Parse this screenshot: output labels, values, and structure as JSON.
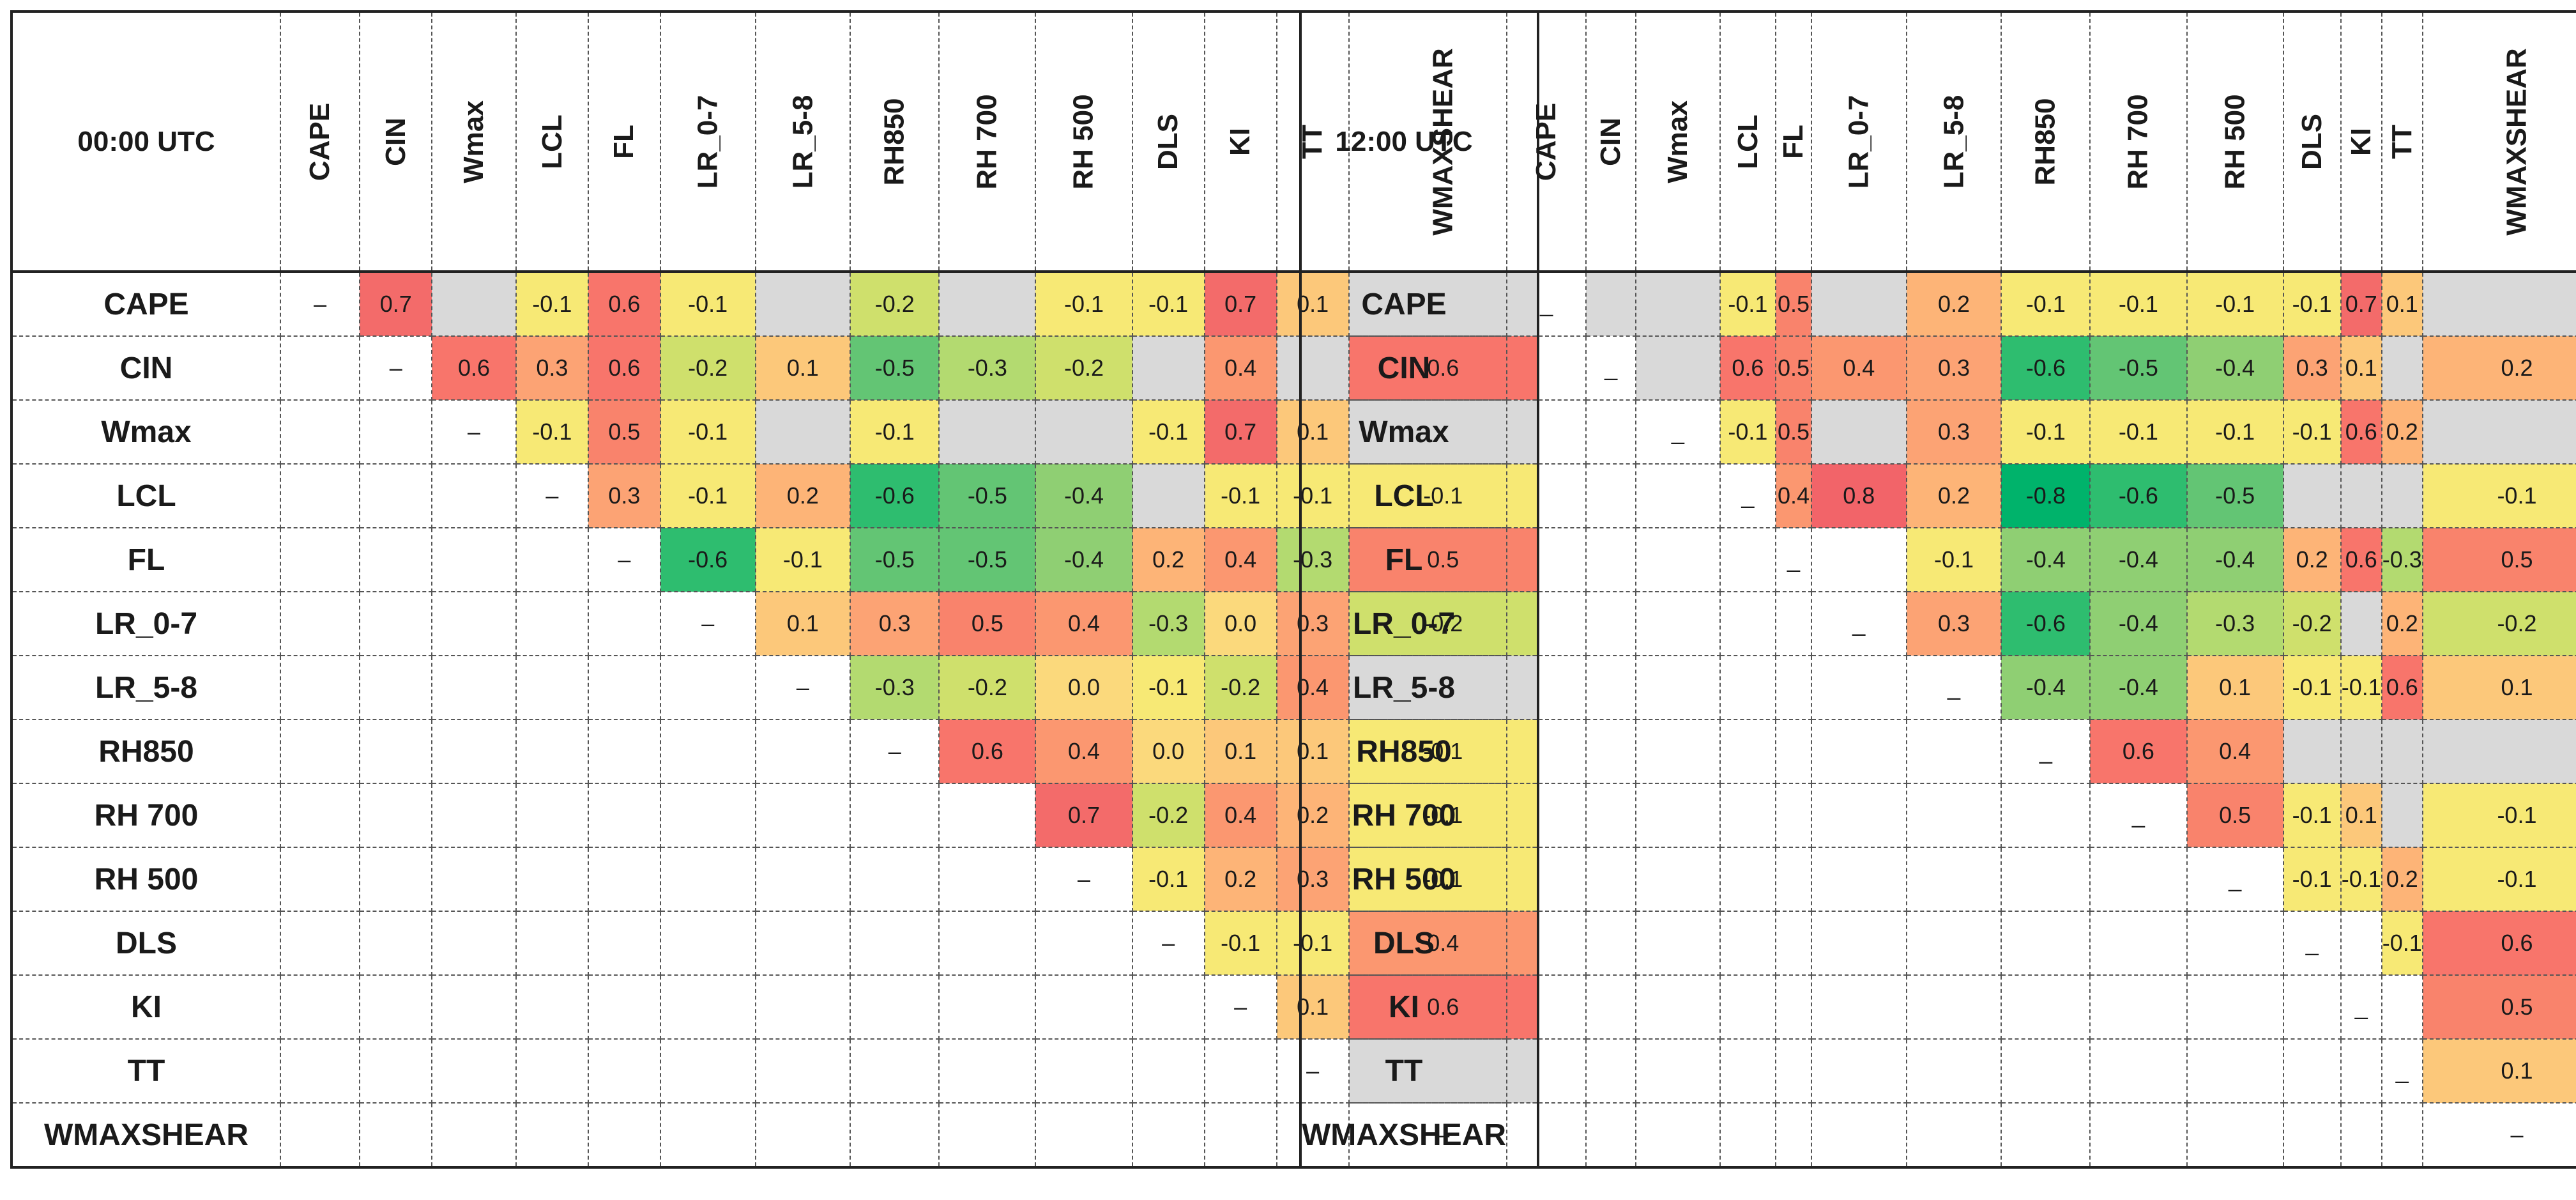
{
  "chart_data": [
    {
      "type": "table",
      "title": "00:00 UTC",
      "columns": [
        "CAPE",
        "CIN",
        "Wmax",
        "LCL",
        "FL",
        "LR_0-7",
        "LR_5-8",
        "RH850",
        "RH 700",
        "RH 500",
        "DLS",
        "KI",
        "TT",
        "WMAXSHEAR"
      ],
      "rows": [
        "CAPE",
        "CIN",
        "Wmax",
        "LCL",
        "FL",
        "LR_0-7",
        "LR_5-8",
        "RH850",
        "RH 700",
        "RH 500",
        "DLS",
        "KI",
        "TT",
        "WMAXSHEAR"
      ],
      "values": [
        [
          "–",
          "0.7",
          "G",
          "-0.1",
          "0.6",
          "-0.1",
          "G",
          "-0.2",
          "G",
          "-0.1",
          "-0.1",
          "0.7",
          "0.1",
          "G"
        ],
        [
          "",
          "–",
          "0.6",
          "0.3",
          "0.6",
          "-0.2",
          "0.1",
          "-0.5",
          "-0.3",
          "-0.2",
          "G",
          "0.4",
          "G",
          "0.6"
        ],
        [
          "",
          "",
          "–",
          "-0.1",
          "0.5",
          "-0.1",
          "G",
          "-0.1",
          "G",
          "G",
          "-0.1",
          "0.7",
          "0.1",
          "G"
        ],
        [
          "",
          "",
          "",
          "–",
          "0.3",
          "-0.1",
          "0.2",
          "-0.6",
          "-0.5",
          "-0.4",
          "G",
          "-0.1",
          "-0.1",
          "-0.1"
        ],
        [
          "",
          "",
          "",
          "",
          "–",
          "-0.6",
          "-0.1",
          "-0.5",
          "-0.5",
          "-0.4",
          "0.2",
          "0.4",
          "-0.3",
          "0.5"
        ],
        [
          "",
          "",
          "",
          "",
          "",
          "–",
          "0.1",
          "0.3",
          "0.5",
          "0.4",
          "-0.3",
          "0.0",
          "0.3",
          "-0.2"
        ],
        [
          "",
          "",
          "",
          "",
          "",
          "",
          "–",
          "-0.3",
          "-0.2",
          "0.0",
          "-0.1",
          "-0.2",
          "0.4",
          "G"
        ],
        [
          "",
          "",
          "",
          "",
          "",
          "",
          "",
          "–",
          "0.6",
          "0.4",
          "0.0",
          "0.1",
          "0.1",
          "-0.1"
        ],
        [
          "",
          "",
          "",
          "",
          "",
          "",
          "",
          "",
          "",
          "0.7",
          "-0.2",
          "0.4",
          "0.2",
          "-0.1"
        ],
        [
          "",
          "",
          "",
          "",
          "",
          "",
          "",
          "",
          "",
          "–",
          "-0.1",
          "0.2",
          "0.3",
          "-0.1"
        ],
        [
          "",
          "",
          "",
          "",
          "",
          "",
          "",
          "",
          "",
          "",
          "–",
          "-0.1",
          "-0.1",
          "0.4"
        ],
        [
          "",
          "",
          "",
          "",
          "",
          "",
          "",
          "",
          "",
          "",
          "",
          "–",
          "0.1",
          "0.6"
        ],
        [
          "",
          "",
          "",
          "",
          "",
          "",
          "",
          "",
          "",
          "",
          "",
          "",
          "–",
          "G"
        ],
        [
          "",
          "",
          "",
          "",
          "",
          "",
          "",
          "",
          "",
          "",
          "",
          "",
          "",
          "–"
        ]
      ]
    },
    {
      "type": "table",
      "title": "12:00 UTC",
      "columns": [
        "CAPE",
        "CIN",
        "Wmax",
        "LCL",
        "FL",
        "LR_0-7",
        "LR_5-8",
        "RH850",
        "RH 700",
        "RH 500",
        "DLS",
        "KI",
        "TT",
        "WMAXSHEAR"
      ],
      "rows": [
        "CAPE",
        "CIN",
        "Wmax",
        "LCL",
        "FL",
        "LR_0-7",
        "LR_5-8",
        "RH850",
        "RH 700",
        "RH 500",
        "DLS",
        "KI",
        "TT",
        "WMAXSHEAR"
      ],
      "values": [
        [
          "_",
          "G",
          "G",
          "-0.1",
          "0.5",
          "G",
          "0.2",
          "-0.1",
          "-0.1",
          "-0.1",
          "-0.1",
          "0.7",
          "0.1",
          "G"
        ],
        [
          "",
          "_",
          "G",
          "0.6",
          "0.5",
          "0.4",
          "0.3",
          "-0.6",
          "-0.5",
          "-0.4",
          "0.3",
          "0.1",
          "G",
          "0.2"
        ],
        [
          "",
          "",
          "_",
          "-0.1",
          "0.5",
          "G",
          "0.3",
          "-0.1",
          "-0.1",
          "-0.1",
          "-0.1",
          "0.6",
          "0.2",
          "G"
        ],
        [
          "",
          "",
          "",
          "_",
          "0.4",
          "0.8",
          "0.2",
          "-0.8",
          "-0.6",
          "-0.5",
          "G",
          "G",
          "G",
          "-0.1"
        ],
        [
          "",
          "",
          "",
          "",
          "_",
          "",
          "-0.1",
          "-0.4",
          "-0.4",
          "-0.4",
          "0.2",
          "0.6",
          "-0.3",
          "0.5"
        ],
        [
          "",
          "",
          "",
          "",
          "",
          "_",
          "0.3",
          "-0.6",
          "-0.4",
          "-0.3",
          "-0.2",
          "G",
          "0.2",
          "-0.2"
        ],
        [
          "",
          "",
          "",
          "",
          "",
          "",
          "_",
          "-0.4",
          "-0.4",
          "0.1",
          "-0.1",
          "-0.1",
          "0.6",
          "0.1"
        ],
        [
          "",
          "",
          "",
          "",
          "",
          "",
          "",
          "_",
          "0.6",
          "0.4",
          "G",
          "G",
          "G",
          "G"
        ],
        [
          "",
          "",
          "",
          "",
          "",
          "",
          "",
          "",
          "_",
          "0.5",
          "-0.1",
          "0.1",
          "G",
          "-0.1"
        ],
        [
          "",
          "",
          "",
          "",
          "",
          "",
          "",
          "",
          "",
          "_",
          "-0.1",
          "-0.1",
          "0.2",
          "-0.1"
        ],
        [
          "",
          "",
          "",
          "",
          "",
          "",
          "",
          "",
          "",
          "",
          "_",
          "",
          "-0.1",
          "0.6"
        ],
        [
          "",
          "",
          "",
          "",
          "",
          "",
          "",
          "",
          "",
          "",
          "",
          "_",
          "",
          "0.5"
        ],
        [
          "",
          "",
          "",
          "",
          "",
          "",
          "",
          "",
          "",
          "",
          "",
          "",
          "_",
          "0.1"
        ],
        [
          "",
          "",
          "",
          "",
          "",
          "",
          "",
          "",
          "",
          "",
          "",
          "",
          "",
          "–"
        ]
      ]
    }
  ],
  "colors": {
    "gray": "#d9d9d9",
    "-0.8": "#00b36b",
    "-0.6": "#2ebd6f",
    "-0.5": "#63c574",
    "-0.4": "#8fcf73",
    "-0.3": "#b3da70",
    "-0.2": "#cfe06c",
    "-0.1": "#f7e975",
    "0.0": "#fbd97c",
    "0.1": "#fcc87a",
    "0.2": "#fdb477",
    "0.3": "#fca374",
    "0.4": "#fb9770",
    "0.5": "#f9836c",
    "0.6": "#f8756b",
    "0.7": "#f36b6a",
    "0.8": "#f26469"
  }
}
